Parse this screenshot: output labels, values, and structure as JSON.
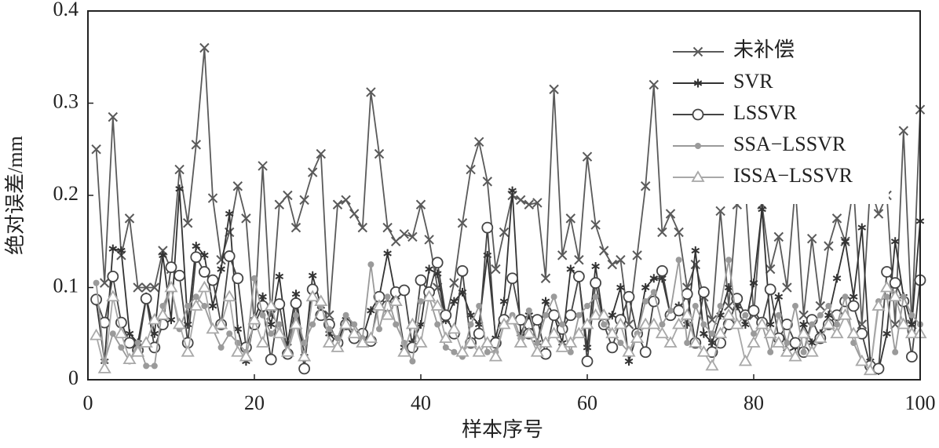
{
  "chart_data": {
    "type": "line",
    "xlabel": "样本序号",
    "ylabel": "绝对误差/mm",
    "x": [
      1,
      2,
      3,
      4,
      5,
      6,
      7,
      8,
      9,
      10,
      11,
      12,
      13,
      14,
      15,
      16,
      17,
      18,
      19,
      20,
      21,
      22,
      23,
      24,
      25,
      26,
      27,
      28,
      29,
      30,
      31,
      32,
      33,
      34,
      35,
      36,
      37,
      38,
      39,
      40,
      41,
      42,
      43,
      44,
      45,
      46,
      47,
      48,
      49,
      50,
      51,
      52,
      53,
      54,
      55,
      56,
      57,
      58,
      59,
      60,
      61,
      62,
      63,
      64,
      65,
      66,
      67,
      68,
      69,
      70,
      71,
      72,
      73,
      74,
      75,
      76,
      77,
      78,
      79,
      80,
      81,
      82,
      83,
      84,
      85,
      86,
      87,
      88,
      89,
      90,
      91,
      92,
      93,
      94,
      95,
      96,
      97,
      98,
      99,
      100
    ],
    "xlim": [
      0,
      100
    ],
    "xticks": [
      0,
      20,
      40,
      60,
      80,
      100
    ],
    "ylim": [
      0,
      0.4
    ],
    "yticks": [
      0,
      0.1,
      0.2,
      0.3,
      0.4
    ],
    "legend": "upper right",
    "series": [
      {
        "name": "未补偿",
        "color": "#5a5a5a",
        "marker": "x",
        "values": [
          0.25,
          0.105,
          0.285,
          0.135,
          0.175,
          0.1,
          0.1,
          0.1,
          0.14,
          0.12,
          0.228,
          0.17,
          0.255,
          0.36,
          0.197,
          0.13,
          0.16,
          0.21,
          0.175,
          0.06,
          0.232,
          0.07,
          0.19,
          0.2,
          0.165,
          0.195,
          0.225,
          0.245,
          0.07,
          0.19,
          0.195,
          0.18,
          0.165,
          0.312,
          0.245,
          0.165,
          0.15,
          0.158,
          0.155,
          0.19,
          0.152,
          0.1,
          0.065,
          0.105,
          0.17,
          0.228,
          0.258,
          0.215,
          0.12,
          0.16,
          0.2,
          0.195,
          0.19,
          0.192,
          0.11,
          0.315,
          0.135,
          0.175,
          0.13,
          0.242,
          0.168,
          0.14,
          0.125,
          0.13,
          0.06,
          0.135,
          0.21,
          0.32,
          0.16,
          0.18,
          0.16,
          0.1,
          0.125,
          0.09,
          0.065,
          0.183,
          0.08,
          0.19,
          0.21,
          0.07,
          0.19,
          0.12,
          0.155,
          0.1,
          0.21,
          0.07,
          0.153,
          0.08,
          0.145,
          0.175,
          0.15,
          0.21,
          0.06,
          0.21,
          0.18,
          0.2,
          0.06,
          0.27,
          0.06,
          0.293
        ]
      },
      {
        "name": "SVR",
        "color": "#333333",
        "marker": "star",
        "values": [
          0.085,
          0.02,
          0.142,
          0.14,
          0.05,
          0.04,
          0.09,
          0.05,
          0.135,
          0.065,
          0.207,
          0.06,
          0.145,
          0.135,
          0.08,
          0.12,
          0.18,
          0.055,
          0.02,
          0.065,
          0.09,
          0.06,
          0.112,
          0.04,
          0.093,
          0.025,
          0.113,
          0.08,
          0.05,
          0.04,
          0.065,
          0.05,
          0.045,
          0.075,
          0.09,
          0.137,
          0.09,
          0.035,
          0.04,
          0.06,
          0.12,
          0.115,
          0.065,
          0.085,
          0.095,
          0.07,
          0.06,
          0.135,
          0.045,
          0.085,
          0.205,
          0.05,
          0.07,
          0.04,
          0.085,
          0.07,
          0.04,
          0.12,
          0.11,
          0.035,
          0.123,
          0.06,
          0.07,
          0.1,
          0.02,
          0.05,
          0.1,
          0.11,
          0.11,
          0.07,
          0.08,
          0.06,
          0.14,
          0.05,
          0.04,
          0.07,
          0.1,
          0.08,
          0.06,
          0.105,
          0.185,
          0.06,
          0.09,
          0.03,
          0.035,
          0.06,
          0.04,
          0.05,
          0.07,
          0.11,
          0.15,
          0.09,
          0.165,
          0.02,
          0.01,
          0.05,
          0.15,
          0.09,
          0.06,
          0.172
        ]
      },
      {
        "name": "LSSVR",
        "color": "#444444",
        "marker": "circle",
        "values": [
          0.087,
          0.062,
          0.112,
          0.062,
          0.04,
          0.032,
          0.088,
          0.035,
          0.06,
          0.122,
          0.113,
          0.04,
          0.133,
          0.117,
          0.108,
          0.06,
          0.134,
          0.11,
          0.035,
          0.06,
          0.08,
          0.022,
          0.082,
          0.028,
          0.083,
          0.012,
          0.098,
          0.07,
          0.06,
          0.04,
          0.06,
          0.045,
          0.05,
          0.042,
          0.09,
          0.08,
          0.095,
          0.097,
          0.035,
          0.108,
          0.095,
          0.127,
          0.07,
          0.05,
          0.118,
          0.04,
          0.05,
          0.165,
          0.04,
          0.065,
          0.11,
          0.065,
          0.05,
          0.065,
          0.028,
          0.07,
          0.055,
          0.07,
          0.112,
          0.02,
          0.105,
          0.06,
          0.035,
          0.065,
          0.09,
          0.05,
          0.03,
          0.085,
          0.118,
          0.07,
          0.075,
          0.093,
          0.04,
          0.095,
          0.03,
          0.04,
          0.06,
          0.088,
          0.07,
          0.075,
          0.062,
          0.098,
          0.045,
          0.06,
          0.04,
          0.03,
          0.065,
          0.045,
          0.06,
          0.07,
          0.085,
          0.08,
          0.05,
          0.015,
          0.012,
          0.117,
          0.105,
          0.085,
          0.025,
          0.108
        ]
      },
      {
        "name": "SSA−LSSVR",
        "color": "#9a9a9a",
        "marker": "dot",
        "values": [
          0.105,
          0.02,
          0.05,
          0.035,
          0.02,
          0.04,
          0.015,
          0.015,
          0.08,
          0.1,
          0.055,
          0.08,
          0.09,
          0.08,
          0.055,
          0.035,
          0.05,
          0.04,
          0.03,
          0.11,
          0.07,
          0.05,
          0.06,
          0.03,
          0.07,
          0.04,
          0.06,
          0.08,
          0.055,
          0.045,
          0.07,
          0.06,
          0.045,
          0.125,
          0.055,
          0.09,
          0.06,
          0.04,
          0.02,
          0.085,
          0.09,
          0.06,
          0.035,
          0.03,
          0.025,
          0.06,
          0.08,
          0.03,
          0.03,
          0.06,
          0.07,
          0.045,
          0.075,
          0.04,
          0.07,
          0.09,
          0.06,
          0.03,
          0.07,
          0.08,
          0.09,
          0.06,
          0.05,
          0.04,
          0.03,
          0.05,
          0.085,
          0.095,
          0.06,
          0.075,
          0.13,
          0.04,
          0.08,
          0.06,
          0.05,
          0.08,
          0.13,
          0.06,
          0.07,
          0.05,
          0.06,
          0.03,
          0.07,
          0.04,
          0.08,
          0.03,
          0.06,
          0.07,
          0.08,
          0.06,
          0.09,
          0.04,
          0.02,
          0.01,
          0.085,
          0.09,
          0.03,
          0.09,
          0.07,
          0.06
        ]
      },
      {
        "name": "ISSA−LSSVR",
        "color": "#a8a8a8",
        "marker": "triangle",
        "values": [
          0.048,
          0.012,
          0.09,
          0.05,
          0.022,
          0.03,
          0.04,
          0.065,
          0.07,
          0.1,
          0.06,
          0.03,
          0.08,
          0.1,
          0.055,
          0.06,
          0.09,
          0.03,
          0.025,
          0.065,
          0.04,
          0.08,
          0.05,
          0.03,
          0.06,
          0.025,
          0.09,
          0.085,
          0.04,
          0.035,
          0.06,
          0.05,
          0.04,
          0.045,
          0.08,
          0.07,
          0.085,
          0.03,
          0.06,
          0.04,
          0.09,
          0.08,
          0.045,
          0.055,
          0.03,
          0.04,
          0.03,
          0.04,
          0.025,
          0.06,
          0.065,
          0.04,
          0.05,
          0.03,
          0.04,
          0.05,
          0.035,
          0.04,
          0.05,
          0.06,
          0.07,
          0.07,
          0.05,
          0.06,
          0.03,
          0.045,
          0.06,
          0.06,
          0.05,
          0.04,
          0.06,
          0.07,
          0.04,
          0.03,
          0.015,
          0.05,
          0.07,
          0.06,
          0.02,
          0.04,
          0.06,
          0.05,
          0.04,
          0.03,
          0.025,
          0.05,
          0.03,
          0.045,
          0.06,
          0.05,
          0.07,
          0.05,
          0.02,
          0.01,
          0.08,
          0.1,
          0.09,
          0.06,
          0.05,
          0.05
        ]
      }
    ]
  }
}
